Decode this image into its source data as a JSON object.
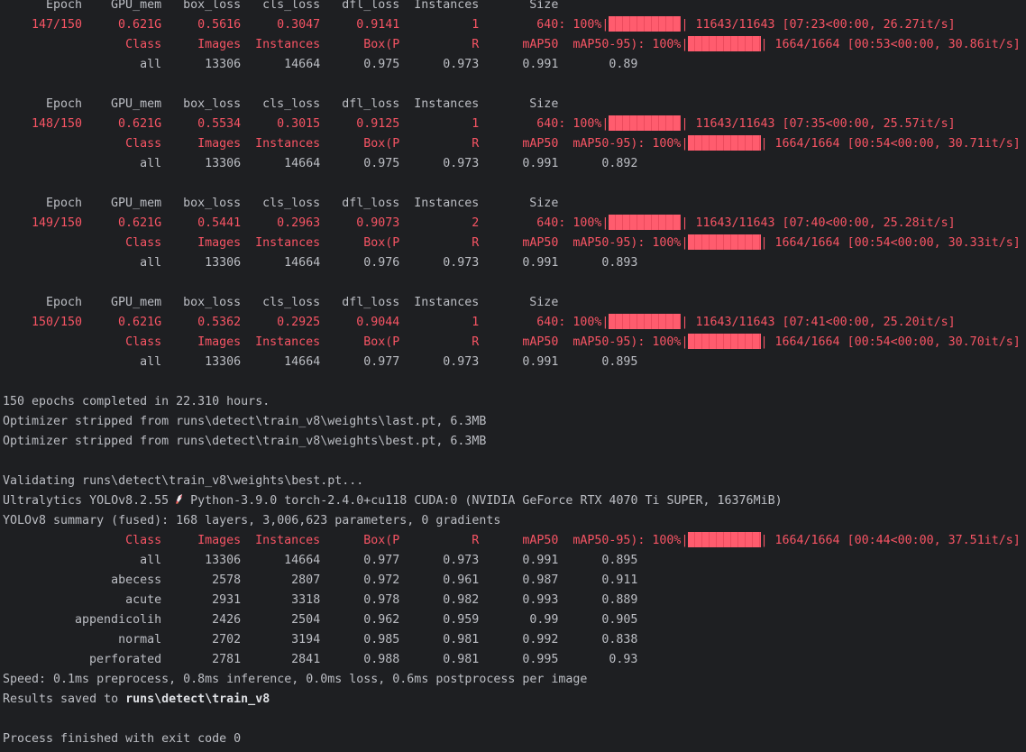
{
  "colors": {
    "text": "#bcbec4",
    "error_red": "#f75464",
    "bar": "#ff5c6e",
    "background": "#1e1f22"
  },
  "epoch_header": [
    "Epoch",
    "GPU_mem",
    "box_loss",
    "cls_loss",
    "dfl_loss",
    "Instances",
    "Size"
  ],
  "val_header": [
    "Class",
    "Images",
    "Instances",
    "Box(P",
    "R",
    "mAP50",
    "mAP50-95)"
  ],
  "epochs": [
    {
      "train": [
        "147/150",
        "0.621G",
        "0.5616",
        "0.3047",
        "0.9141",
        "1",
        "640"
      ],
      "train_progress": {
        "percent": "100%",
        "count": "11643/11643",
        "timing": "[07:23<00:00, 26.27it/s]"
      },
      "val_progress": {
        "percent": "100%",
        "count": "1664/1664",
        "timing": "[00:53<00:00, 30.86it/s]"
      },
      "val_all": [
        "all",
        "13306",
        "14664",
        "0.975",
        "0.973",
        "0.991",
        "0.89"
      ]
    },
    {
      "train": [
        "148/150",
        "0.621G",
        "0.5534",
        "0.3015",
        "0.9125",
        "1",
        "640"
      ],
      "train_progress": {
        "percent": "100%",
        "count": "11643/11643",
        "timing": "[07:35<00:00, 25.57it/s]"
      },
      "val_progress": {
        "percent": "100%",
        "count": "1664/1664",
        "timing": "[00:54<00:00, 30.71it/s]"
      },
      "val_all": [
        "all",
        "13306",
        "14664",
        "0.975",
        "0.973",
        "0.991",
        "0.892"
      ]
    },
    {
      "train": [
        "149/150",
        "0.621G",
        "0.5441",
        "0.2963",
        "0.9073",
        "2",
        "640"
      ],
      "train_progress": {
        "percent": "100%",
        "count": "11643/11643",
        "timing": "[07:40<00:00, 25.28it/s]"
      },
      "val_progress": {
        "percent": "100%",
        "count": "1664/1664",
        "timing": "[00:54<00:00, 30.33it/s]"
      },
      "val_all": [
        "all",
        "13306",
        "14664",
        "0.976",
        "0.973",
        "0.991",
        "0.893"
      ]
    },
    {
      "train": [
        "150/150",
        "0.621G",
        "0.5362",
        "0.2925",
        "0.9044",
        "1",
        "640"
      ],
      "train_progress": {
        "percent": "100%",
        "count": "11643/11643",
        "timing": "[07:41<00:00, 25.20it/s]"
      },
      "val_progress": {
        "percent": "100%",
        "count": "1664/1664",
        "timing": "[00:54<00:00, 30.70it/s]"
      },
      "val_all": [
        "all",
        "13306",
        "14664",
        "0.977",
        "0.973",
        "0.991",
        "0.895"
      ]
    }
  ],
  "summary": {
    "completed": "150 epochs completed in 22.310 hours.",
    "stripped_last": "Optimizer stripped from runs\\detect\\train_v8\\weights\\last.pt, 6.3MB",
    "stripped_best": "Optimizer stripped from runs\\detect\\train_v8\\weights\\best.pt, 6.3MB",
    "validating": "Validating runs\\detect\\train_v8\\weights\\best.pt...",
    "ultralytics_prefix": "Ultralytics YOLOv8.2.55 ",
    "rocket_icon": "rocket",
    "ultralytics_suffix": " Python-3.9.0 torch-2.4.0+cu118 CUDA:0 (NVIDIA GeForce RTX 4070 Ti SUPER, 16376MiB)",
    "model_summary": "YOLOv8 summary (fused): 168 layers, 3,006,623 parameters, 0 gradients"
  },
  "final_val_progress": {
    "percent": "100%",
    "count": "1664/1664",
    "timing": "[00:44<00:00, 37.51it/s]"
  },
  "final_rows": [
    [
      "all",
      "13306",
      "14664",
      "0.977",
      "0.973",
      "0.991",
      "0.895"
    ],
    [
      "abecess",
      "2578",
      "2807",
      "0.972",
      "0.961",
      "0.987",
      "0.911"
    ],
    [
      "acute",
      "2931",
      "3318",
      "0.978",
      "0.982",
      "0.993",
      "0.889"
    ],
    [
      "appendicolih",
      "2426",
      "2504",
      "0.962",
      "0.959",
      "0.99",
      "0.905"
    ],
    [
      "normal",
      "2702",
      "3194",
      "0.985",
      "0.981",
      "0.992",
      "0.838"
    ],
    [
      "perforated",
      "2781",
      "2841",
      "0.988",
      "0.981",
      "0.995",
      "0.93"
    ]
  ],
  "speed": "Speed: 0.1ms preprocess, 0.8ms inference, 0.0ms loss, 0.6ms postprocess per image",
  "results_prefix": "Results saved to ",
  "results_path": "runs\\detect\\train_v8",
  "exit": "Process finished with exit code 0"
}
